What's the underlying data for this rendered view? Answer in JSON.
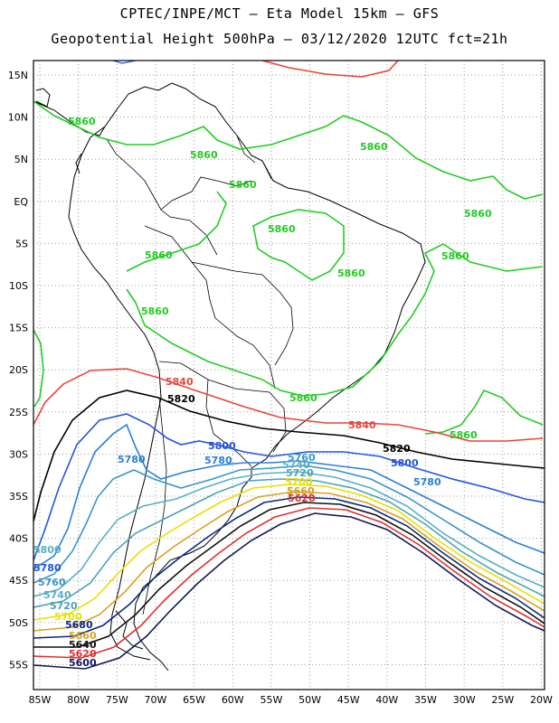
{
  "header": {
    "line1": "CPTEC/INPE/MCT –  Eta Model 15km – GFS",
    "line2": "Geopotential Height 500hPa – 03/12/2020 12UTC fct=21h"
  },
  "map": {
    "lon_ticks": [
      "85W",
      "80W",
      "75W",
      "70W",
      "65W",
      "60W",
      "55W",
      "50W",
      "45W",
      "40W",
      "35W",
      "30W",
      "25W",
      "20W"
    ],
    "lat_ticks": [
      "15N",
      "10N",
      "5N",
      "EQ",
      "5S",
      "10S",
      "15S",
      "20S",
      "25S",
      "30S",
      "35S",
      "40S",
      "45S",
      "50S",
      "55S"
    ],
    "contours": [
      {
        "level": "5860",
        "color": "#22cc22"
      },
      {
        "level": "5840",
        "color": "#e8453c"
      },
      {
        "level": "5820",
        "color": "#000000"
      },
      {
        "level": "5800",
        "color": "#2255dd"
      },
      {
        "level": "5780",
        "color": "#2a7fd6"
      },
      {
        "level": "5760",
        "color": "#3b95c9"
      },
      {
        "level": "5740",
        "color": "#56b0c6"
      },
      {
        "level": "5720",
        "color": "#4aa3b8"
      },
      {
        "level": "5700",
        "color": "#e8e000"
      },
      {
        "level": "5680",
        "color": "#d9a025"
      },
      {
        "level": "5660",
        "color": "#0a2a80"
      },
      {
        "level": "5640",
        "color": "#111111"
      },
      {
        "level": "5620",
        "color": "#e03030"
      },
      {
        "level": "5600",
        "color": "#11185a"
      }
    ],
    "labels": {
      "g1": "5860",
      "g2": "5860",
      "g3": "5860",
      "g4": "5860",
      "g5": "5860",
      "g6": "5860",
      "g7": "5860",
      "g8": "5860",
      "g9": "5860",
      "g10": "5860",
      "g11": "5860",
      "g12": "5860",
      "r1": "5840",
      "r2": "5840",
      "k1": "5820",
      "k2": "5820",
      "b1": "5800",
      "b2": "5800",
      "b3": "5780",
      "b4": "5780",
      "b5": "5760",
      "b6": "5740",
      "b7": "5720",
      "b8": "5700",
      "w1": "5780",
      "w2": "5760",
      "w3": "5740",
      "w4": "5720",
      "w5": "5700",
      "w6": "5680",
      "w7": "5660",
      "w8": "5640",
      "w9": "5620",
      "w10": "5600",
      "w11": "5660",
      "w12": "5620",
      "l1": "5800",
      "l2": "5780",
      "l3": "5760",
      "l4": "5740",
      "l5": "5720",
      "l6": "5700",
      "l7": "5680",
      "l8": "5660",
      "l9": "5640",
      "l10": "5620",
      "l11": "5600",
      "l12": "5600"
    }
  }
}
